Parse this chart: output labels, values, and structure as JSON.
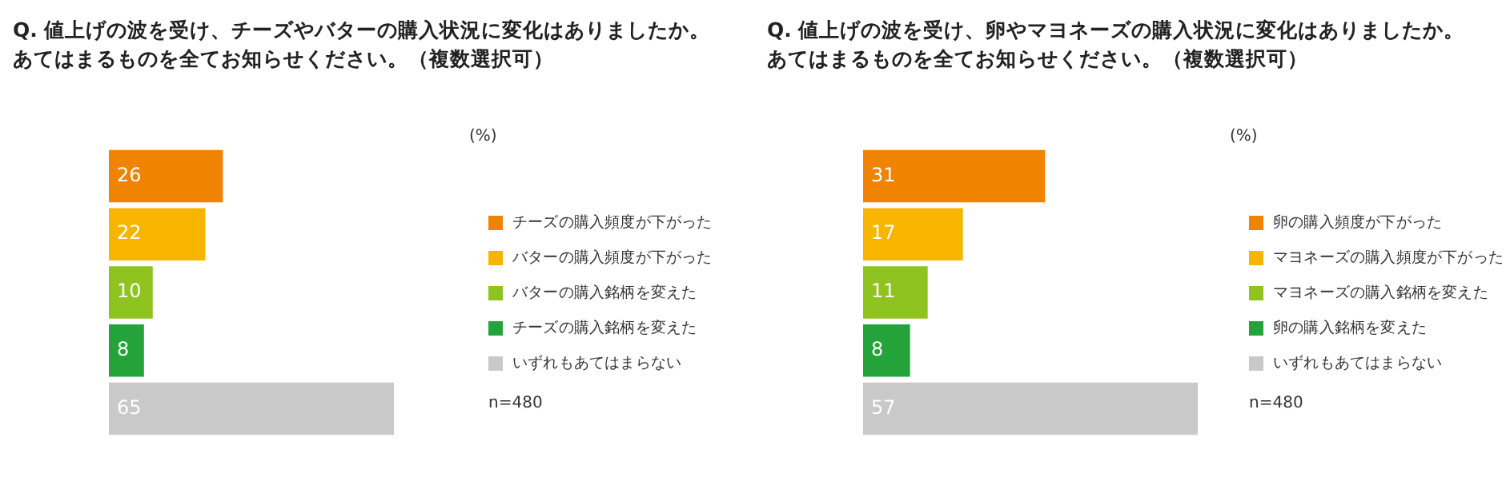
{
  "chart_data": [
    {
      "type": "bar",
      "orientation": "horizontal",
      "title": "Q. 値上げの波を受け、チーズやバターの購入状況に変化はありましたか。あてはまるものを全てお知らせください。（複数選択可）",
      "categories": [
        null
      ],
      "series": [
        {
          "name": "チーズの購入頻度が下がった",
          "color": "#f08300",
          "values": [
            26
          ]
        },
        {
          "name": "バターの購入頻度が下がった",
          "color": "#f8b500",
          "values": [
            22
          ]
        },
        {
          "name": "バターの購入銘柄を変えた",
          "color": "#8fc31f",
          "values": [
            10
          ]
        },
        {
          "name": "チーズの購入銘柄を変えた",
          "color": "#23a33a",
          "values": [
            8
          ]
        },
        {
          "name": "いずれもあてはまらない",
          "color": "#c9c9c9",
          "values": [
            65
          ]
        }
      ],
      "tick_labels": false,
      "data_labels": true,
      "legend": "right",
      "annotations": [
        "(%)",
        "n=480"
      ]
    },
    {
      "type": "bar",
      "orientation": "horizontal",
      "title": "Q. 値上げの波を受け、卵やマヨネーズの購入状況に変化はありましたか。あてはまるものを全てお知らせください。（複数選択可）",
      "categories": [
        null
      ],
      "series": [
        {
          "name": "卵の購入頻度が下がった",
          "color": "#f08300",
          "values": [
            31
          ]
        },
        {
          "name": "マヨネーズの購入頻度が下がった",
          "color": "#f8b500",
          "values": [
            17
          ]
        },
        {
          "name": "マヨネーズの購入銘柄を変えた",
          "color": "#8fc31f",
          "values": [
            11
          ]
        },
        {
          "name": "卵の購入銘柄を変えた",
          "color": "#23a33a",
          "values": [
            8
          ]
        },
        {
          "name": "いずれもあてはまらない",
          "color": "#c9c9c9",
          "values": [
            57
          ]
        }
      ],
      "tick_labels": false,
      "data_labels": true,
      "legend": "right",
      "annotations": [
        "(%)",
        "n=480"
      ]
    }
  ]
}
